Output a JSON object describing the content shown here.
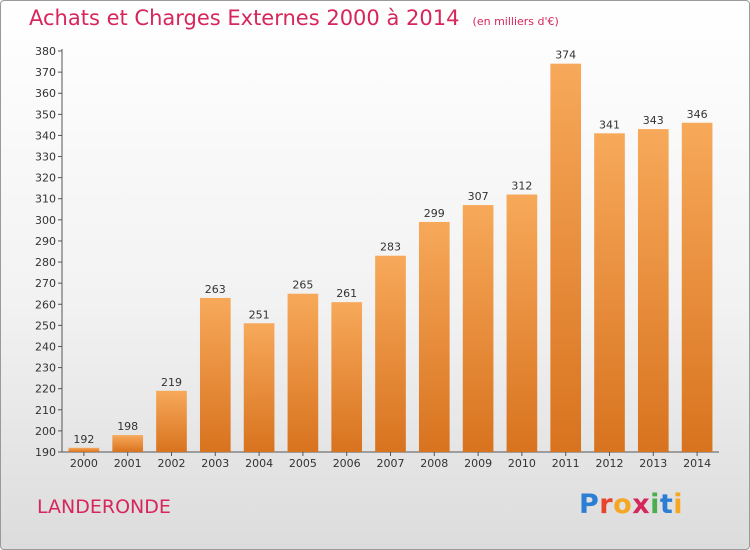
{
  "header": {
    "title": "Achats et Charges Externes 2000 à 2014",
    "subtitle": "(en milliers d'€)"
  },
  "footer": {
    "commune": "LANDERONDE",
    "logo_letters": [
      "P",
      "r",
      "o",
      "x",
      "i",
      "t",
      "i"
    ],
    "logo_colors": [
      "#2a7fd4",
      "#e8442c",
      "#f5a623",
      "#d6265c",
      "#4cae4c",
      "#2a7fd4",
      "#f5a623"
    ]
  },
  "chart_data": {
    "type": "bar",
    "categories": [
      "2000",
      "2001",
      "2002",
      "2003",
      "2004",
      "2005",
      "2006",
      "2007",
      "2008",
      "2009",
      "2010",
      "2011",
      "2012",
      "2013",
      "2014"
    ],
    "values": [
      192,
      198,
      219,
      263,
      251,
      265,
      261,
      283,
      299,
      307,
      312,
      374,
      341,
      343,
      346
    ],
    "title": "Achats et Charges Externes 2000 à 2014",
    "xlabel": "",
    "ylabel": "",
    "ylim": [
      190,
      380
    ],
    "yticks": [
      190,
      200,
      210,
      220,
      230,
      240,
      250,
      260,
      270,
      280,
      290,
      300,
      310,
      320,
      330,
      340,
      350,
      360,
      370,
      380
    ],
    "grid": false,
    "data_labels": true,
    "bar_color_top": "#f7a95a",
    "bar_color_bottom": "#d8731f"
  }
}
